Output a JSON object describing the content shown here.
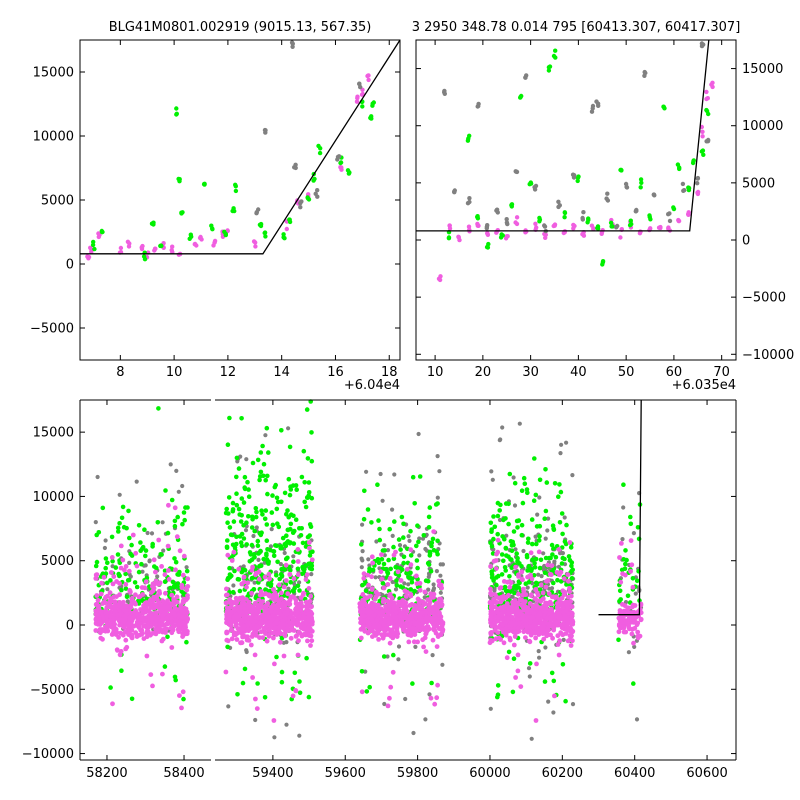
{
  "colors": {
    "pink": "#f05ee0",
    "green": "#00f000",
    "gray": "#808080",
    "model": "#000000"
  },
  "chart_data": [
    {
      "type": "scatter",
      "title": "BLG41M0801.002919 (9015.13, 567.35)",
      "x_offset_label": "+6.04e4",
      "xlim": [
        6.5,
        18.4
      ],
      "ylim": [
        -7500,
        17500
      ],
      "xticks": [
        8,
        10,
        12,
        14,
        16,
        18
      ],
      "yticks": [
        -5000,
        0,
        5000,
        10000,
        15000
      ],
      "ytick_labels": [
        "−5000",
        "0",
        "5000",
        "10000",
        "15000"
      ],
      "series": [
        {
          "color": "pink",
          "points": [
            [
              6.8,
              600
            ],
            [
              6.9,
              1200
            ],
            [
              7.2,
              2200
            ],
            [
              8.0,
              1100
            ],
            [
              8.3,
              1600
            ],
            [
              8.8,
              1300
            ],
            [
              9.0,
              700
            ],
            [
              9.3,
              1100
            ],
            [
              9.6,
              1500
            ],
            [
              9.9,
              1200
            ],
            [
              10.2,
              800
            ],
            [
              10.8,
              1500
            ],
            [
              11.0,
              2100
            ],
            [
              11.5,
              1700
            ],
            [
              11.8,
              2400
            ],
            [
              12.0,
              2700
            ],
            [
              13.0,
              1600
            ],
            [
              14.2,
              3100
            ],
            [
              14.6,
              4800
            ],
            [
              15.0,
              5200
            ],
            [
              16.2,
              7600
            ],
            [
              16.8,
              12800
            ],
            [
              17.0,
              13400
            ],
            [
              17.2,
              14500
            ]
          ]
        },
        {
          "color": "green",
          "points": [
            [
              7.0,
              1500
            ],
            [
              7.3,
              2600
            ],
            [
              8.9,
              600
            ],
            [
              9.2,
              3100
            ],
            [
              9.5,
              1400
            ],
            [
              10.1,
              11900
            ],
            [
              10.2,
              6600
            ],
            [
              10.3,
              4100
            ],
            [
              10.6,
              2100
            ],
            [
              11.1,
              6400
            ],
            [
              11.4,
              2800
            ],
            [
              11.9,
              2200
            ],
            [
              12.2,
              4200
            ],
            [
              12.3,
              5900
            ],
            [
              13.2,
              3100
            ],
            [
              13.4,
              2200
            ],
            [
              14.1,
              2100
            ],
            [
              14.3,
              3400
            ],
            [
              15.0,
              5100
            ],
            [
              15.2,
              6700
            ],
            [
              15.4,
              9000
            ],
            [
              16.2,
              8100
            ],
            [
              16.5,
              7200
            ],
            [
              17.0,
              12600
            ],
            [
              17.3,
              11500
            ],
            [
              17.4,
              12400
            ]
          ]
        },
        {
          "color": "gray",
          "points": [
            [
              13.1,
              4000
            ],
            [
              13.4,
              10500
            ],
            [
              14.4,
              17200
            ],
            [
              14.5,
              7600
            ],
            [
              14.7,
              4600
            ],
            [
              15.3,
              5600
            ],
            [
              16.1,
              8300
            ],
            [
              16.9,
              14000
            ]
          ]
        }
      ],
      "model_line": [
        [
          6.5,
          800
        ],
        [
          13.3,
          800
        ],
        [
          18.4,
          17500
        ]
      ]
    },
    {
      "type": "scatter",
      "title": "3 2950 348.78 0.014 795 [60413.307, 60417.307]",
      "x_offset_label": "+6.035e4",
      "xlim": [
        6,
        73
      ],
      "ylim": [
        -10500,
        17500
      ],
      "xticks": [
        10,
        20,
        30,
        40,
        50,
        60,
        70
      ],
      "yticks": [
        -10000,
        -5000,
        0,
        5000,
        10000,
        15000
      ],
      "ytick_labels": [
        "−10000",
        "−5000",
        "0",
        "5000",
        "10000",
        "15000"
      ],
      "series": [
        {
          "color": "pink",
          "points": [
            [
              11,
              -3300
            ],
            [
              13,
              1200
            ],
            [
              15,
              300
            ],
            [
              17,
              800
            ],
            [
              19,
              1300
            ],
            [
              21,
              600
            ],
            [
              23,
              900
            ],
            [
              25,
              300
            ],
            [
              27,
              1500
            ],
            [
              29,
              700
            ],
            [
              31,
              1100
            ],
            [
              33,
              400
            ],
            [
              35,
              1400
            ],
            [
              37,
              900
            ],
            [
              39,
              1200
            ],
            [
              41,
              500
            ],
            [
              43,
              1000
            ],
            [
              45,
              700
            ],
            [
              47,
              1300
            ],
            [
              49,
              800
            ],
            [
              51,
              1500
            ],
            [
              53,
              600
            ],
            [
              55,
              1100
            ],
            [
              57,
              1300
            ],
            [
              59,
              900
            ],
            [
              61,
              1600
            ],
            [
              63,
              2100
            ],
            [
              65,
              4100
            ],
            [
              66,
              9500
            ],
            [
              67,
              12500
            ],
            [
              68,
              13500
            ]
          ]
        },
        {
          "color": "green",
          "points": [
            [
              13,
              300
            ],
            [
              17,
              8900
            ],
            [
              19,
              1900
            ],
            [
              21,
              -500
            ],
            [
              24,
              300
            ],
            [
              26,
              3100
            ],
            [
              28,
              12400
            ],
            [
              30,
              4800
            ],
            [
              32,
              1800
            ],
            [
              34,
              15100
            ],
            [
              35,
              16100
            ],
            [
              37,
              2400
            ],
            [
              40,
              5300
            ],
            [
              42,
              1700
            ],
            [
              44,
              900
            ],
            [
              45,
              -2000
            ],
            [
              47,
              1400
            ],
            [
              49,
              6200
            ],
            [
              51,
              1500
            ],
            [
              53,
              5100
            ],
            [
              55,
              2000
            ],
            [
              58,
              11700
            ],
            [
              60,
              2800
            ],
            [
              61,
              6400
            ],
            [
              63,
              4300
            ],
            [
              64,
              6800
            ],
            [
              66,
              7600
            ],
            [
              67,
              11200
            ]
          ]
        },
        {
          "color": "gray",
          "points": [
            [
              12,
              12800
            ],
            [
              14,
              4200
            ],
            [
              17,
              3400
            ],
            [
              19,
              11800
            ],
            [
              21,
              1200
            ],
            [
              23,
              2500
            ],
            [
              25,
              1600
            ],
            [
              27,
              5900
            ],
            [
              29,
              14200
            ],
            [
              31,
              4500
            ],
            [
              33,
              900
            ],
            [
              36,
              3200
            ],
            [
              39,
              5500
            ],
            [
              41,
              2200
            ],
            [
              43,
              11400
            ],
            [
              44,
              12100
            ],
            [
              46,
              3700
            ],
            [
              48,
              1200
            ],
            [
              50,
              4600
            ],
            [
              52,
              2500
            ],
            [
              54,
              14300
            ],
            [
              56,
              3900
            ],
            [
              59,
              2100
            ],
            [
              62,
              4500
            ],
            [
              65,
              5200
            ],
            [
              66,
              17100
            ],
            [
              67,
              8600
            ]
          ]
        }
      ],
      "model_line": [
        [
          6,
          800
        ],
        [
          63.3,
          800
        ],
        [
          67.3,
          17500
        ]
      ]
    },
    {
      "type": "scatter",
      "title": "",
      "x_offset_label": "",
      "xlim": [
        58130,
        60680
      ],
      "ylim": [
        -10500,
        17500
      ],
      "xticks": [
        58200,
        58400,
        59400,
        59600,
        59800,
        60000,
        60200,
        60400,
        60600
      ],
      "yticks": [
        -10000,
        -5000,
        0,
        5000,
        10000,
        15000
      ],
      "ytick_labels": [
        "−10000",
        "−5000",
        "0",
        "5000",
        "10000",
        "15000"
      ],
      "seasons": [
        [
          58170,
          58410
        ],
        [
          59270,
          59510
        ],
        [
          59640,
          59870
        ],
        [
          60000,
          60230
        ],
        [
          60355,
          60420
        ]
      ],
      "model_line": [
        [
          60300,
          800
        ],
        [
          60413,
          800
        ],
        [
          60418,
          17500
        ]
      ]
    }
  ]
}
